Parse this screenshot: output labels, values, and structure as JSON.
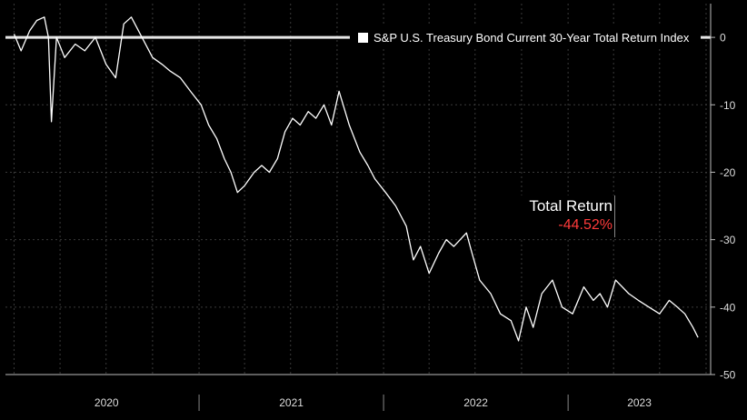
{
  "chart_data": {
    "type": "line",
    "series": [
      {
        "name": "S&P U.S. Treasury Bond Current 30-Year Total Return Index",
        "x": [
          "2020-01-01",
          "2020-01-15",
          "2020-02-01",
          "2020-02-15",
          "2020-03-01",
          "2020-03-09",
          "2020-03-15",
          "2020-03-25",
          "2020-04-10",
          "2020-05-01",
          "2020-05-20",
          "2020-06-10",
          "2020-07-01",
          "2020-07-20",
          "2020-08-05",
          "2020-08-20",
          "2020-09-10",
          "2020-10-01",
          "2020-10-20",
          "2020-11-05",
          "2020-11-25",
          "2020-12-15",
          "2021-01-05",
          "2021-01-20",
          "2021-02-05",
          "2021-02-20",
          "2021-03-05",
          "2021-03-18",
          "2021-04-01",
          "2021-04-20",
          "2021-05-05",
          "2021-05-20",
          "2021-06-05",
          "2021-06-20",
          "2021-07-05",
          "2021-07-20",
          "2021-08-05",
          "2021-08-20",
          "2021-09-05",
          "2021-09-20",
          "2021-10-05",
          "2021-10-25",
          "2021-11-15",
          "2021-12-01",
          "2021-12-15",
          "2022-01-05",
          "2022-01-25",
          "2022-02-15",
          "2022-03-01",
          "2022-03-15",
          "2022-04-01",
          "2022-04-20",
          "2022-05-05",
          "2022-05-20",
          "2022-06-14",
          "2022-06-25",
          "2022-07-10",
          "2022-08-01",
          "2022-08-20",
          "2022-09-10",
          "2022-09-25",
          "2022-10-10",
          "2022-10-24",
          "2022-11-10",
          "2022-12-01",
          "2022-12-20",
          "2023-01-10",
          "2023-02-01",
          "2023-02-20",
          "2023-03-05",
          "2023-03-20",
          "2023-04-05",
          "2023-05-01",
          "2023-05-20",
          "2023-06-10",
          "2023-07-01",
          "2023-07-20",
          "2023-08-05",
          "2023-08-20",
          "2023-09-05",
          "2023-09-15"
        ],
        "values": [
          0.5,
          -2,
          1,
          2.5,
          3,
          0,
          -12.5,
          0,
          -3,
          -1,
          -2,
          0,
          -4,
          -6,
          2,
          3,
          0,
          -3,
          -4,
          -5,
          -6,
          -8,
          -10,
          -13,
          -15,
          -18,
          -20,
          -23,
          -22,
          -20,
          -19,
          -20,
          -18,
          -14,
          -12,
          -13,
          -11,
          -12,
          -10,
          -13,
          -8,
          -13,
          -17,
          -19,
          -21,
          -23,
          -25,
          -28,
          -33,
          -31,
          -35,
          -32,
          -30,
          -31,
          -29,
          -32,
          -36,
          -38,
          -41,
          -42,
          -45,
          -40,
          -43,
          -38,
          -36,
          -40,
          -41,
          -37,
          -39,
          -38,
          -40,
          -36,
          -38,
          -39,
          -40,
          -41,
          -39,
          -40,
          -41,
          -43,
          -44.5
        ]
      }
    ],
    "ylim": [
      -50,
      5
    ],
    "yticks": [
      "0",
      "-10",
      "-20",
      "-30",
      "-40",
      "-50"
    ],
    "xlabels": [
      "2020",
      "2021",
      "2022",
      "2023"
    ],
    "legend": "top-right",
    "grid": true,
    "zero_line": true,
    "annotation": {
      "title": "Total Return",
      "value": "-44.52%"
    },
    "colors": {
      "background": "#000000",
      "line": "#ffffff",
      "grid": "#3a3a3a",
      "negative": "#ff3b3b"
    }
  }
}
